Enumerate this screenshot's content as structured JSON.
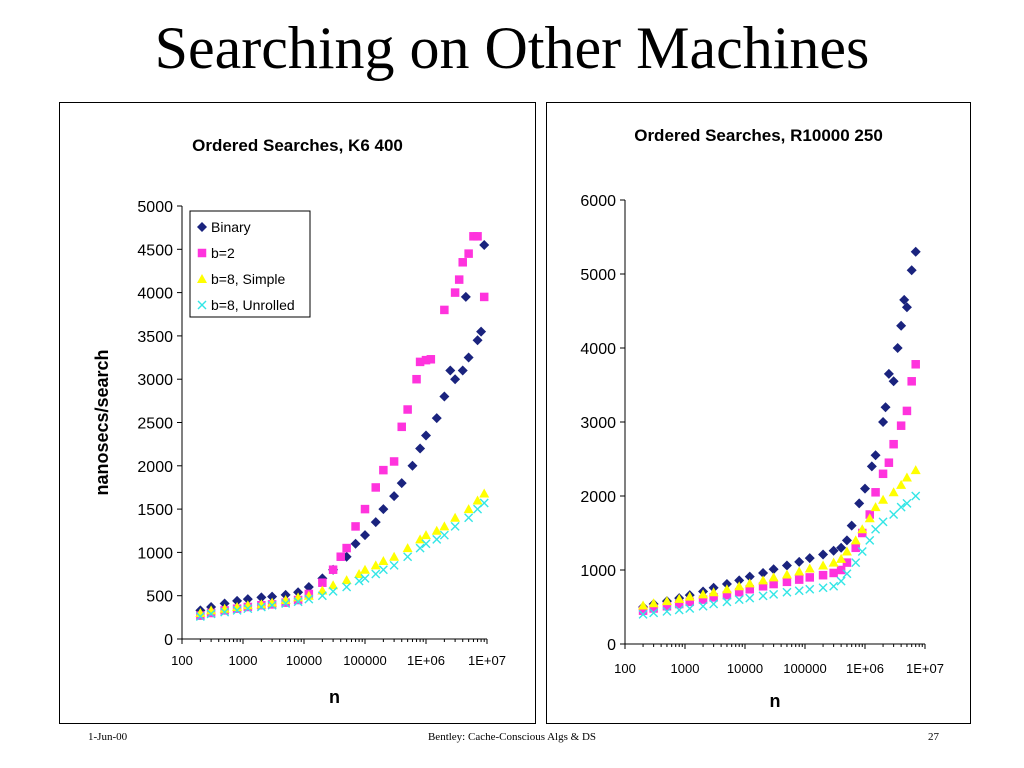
{
  "slide": {
    "title": "Searching on Other Machines",
    "footer_date": "1-Jun-00",
    "footer_center": "Bentley: Cache-Conscious Algs & DS",
    "footer_page": "27"
  },
  "colors": {
    "Binary": "#1a237e",
    "b=2": "#ff33dd",
    "b=8, Simple": "#ffff00",
    "b=8, Unrolled": "#33e6e6"
  },
  "chart_data": [
    {
      "type": "scatter",
      "title": "Ordered Searches, K6 400",
      "xlabel": "n",
      "ylabel": "nanosecs/search",
      "x_scale": "log",
      "xlim": [
        100,
        10000000
      ],
      "ylim": [
        0,
        5000
      ],
      "x_ticks": [
        "100",
        "1000",
        "10000",
        "100000",
        "1E+06",
        "1E+07"
      ],
      "y_ticks": [
        "0",
        "500",
        "1000",
        "1500",
        "2000",
        "2500",
        "3000",
        "3500",
        "4000",
        "4500",
        "5000"
      ],
      "legend": "top-left",
      "series": [
        {
          "name": "Binary",
          "marker": "diamond",
          "points": [
            [
              200,
              330
            ],
            [
              300,
              370
            ],
            [
              500,
              410
            ],
            [
              800,
              440
            ],
            [
              1200,
              460
            ],
            [
              2000,
              480
            ],
            [
              3000,
              490
            ],
            [
              5000,
              510
            ],
            [
              8000,
              540
            ],
            [
              12000,
              600
            ],
            [
              20000,
              700
            ],
            [
              30000,
              800
            ],
            [
              50000,
              950
            ],
            [
              70000,
              1100
            ],
            [
              100000,
              1200
            ],
            [
              150000,
              1350
            ],
            [
              200000,
              1500
            ],
            [
              300000,
              1650
            ],
            [
              400000,
              1800
            ],
            [
              600000,
              2000
            ],
            [
              800000,
              2200
            ],
            [
              1000000,
              2350
            ],
            [
              1500000,
              2550
            ],
            [
              2000000,
              2800
            ],
            [
              3000000,
              3000
            ],
            [
              4000000,
              3100
            ],
            [
              5000000,
              3250
            ],
            [
              7000000,
              3450
            ],
            [
              8000000,
              3550
            ],
            [
              9000000,
              4550
            ],
            [
              4500000,
              3950
            ],
            [
              2500000,
              3100
            ]
          ]
        },
        {
          "name": "b=2",
          "marker": "square",
          "points": [
            [
              200,
              270
            ],
            [
              300,
              300
            ],
            [
              500,
              330
            ],
            [
              800,
              350
            ],
            [
              1200,
              370
            ],
            [
              2000,
              390
            ],
            [
              3000,
              400
            ],
            [
              5000,
              420
            ],
            [
              8000,
              450
            ],
            [
              12000,
              520
            ],
            [
              20000,
              650
            ],
            [
              30000,
              800
            ],
            [
              40000,
              950
            ],
            [
              50000,
              1050
            ],
            [
              70000,
              1300
            ],
            [
              100000,
              1500
            ],
            [
              150000,
              1750
            ],
            [
              200000,
              1950
            ],
            [
              300000,
              2050
            ],
            [
              400000,
              2450
            ],
            [
              500000,
              2650
            ],
            [
              700000,
              3000
            ],
            [
              800000,
              3200
            ],
            [
              1000000,
              3220
            ],
            [
              1200000,
              3230
            ],
            [
              2000000,
              3800
            ],
            [
              3000000,
              4000
            ],
            [
              3500000,
              4150
            ],
            [
              4000000,
              4350
            ],
            [
              5000000,
              4450
            ],
            [
              6000000,
              4650
            ],
            [
              7000000,
              4650
            ],
            [
              9000000,
              3950
            ]
          ]
        },
        {
          "name": "b=8, Simple",
          "marker": "triangle",
          "points": [
            [
              200,
              300
            ],
            [
              300,
              330
            ],
            [
              500,
              350
            ],
            [
              800,
              370
            ],
            [
              1200,
              390
            ],
            [
              2000,
              400
            ],
            [
              3000,
              420
            ],
            [
              5000,
              450
            ],
            [
              8000,
              480
            ],
            [
              12000,
              500
            ],
            [
              20000,
              560
            ],
            [
              30000,
              620
            ],
            [
              50000,
              680
            ],
            [
              80000,
              750
            ],
            [
              100000,
              800
            ],
            [
              150000,
              850
            ],
            [
              200000,
              900
            ],
            [
              300000,
              950
            ],
            [
              500000,
              1050
            ],
            [
              800000,
              1150
            ],
            [
              1000000,
              1200
            ],
            [
              1500000,
              1250
            ],
            [
              2000000,
              1300
            ],
            [
              3000000,
              1400
            ],
            [
              5000000,
              1500
            ],
            [
              7000000,
              1600
            ],
            [
              9000000,
              1680
            ]
          ]
        },
        {
          "name": "b=8, Unrolled",
          "marker": "x",
          "points": [
            [
              200,
              260
            ],
            [
              300,
              290
            ],
            [
              500,
              310
            ],
            [
              800,
              330
            ],
            [
              1200,
              350
            ],
            [
              2000,
              370
            ],
            [
              3000,
              390
            ],
            [
              5000,
              410
            ],
            [
              8000,
              430
            ],
            [
              12000,
              460
            ],
            [
              20000,
              500
            ],
            [
              30000,
              550
            ],
            [
              50000,
              600
            ],
            [
              80000,
              670
            ],
            [
              100000,
              700
            ],
            [
              150000,
              750
            ],
            [
              200000,
              800
            ],
            [
              300000,
              850
            ],
            [
              500000,
              950
            ],
            [
              800000,
              1050
            ],
            [
              1000000,
              1100
            ],
            [
              1500000,
              1150
            ],
            [
              2000000,
              1200
            ],
            [
              3000000,
              1300
            ],
            [
              5000000,
              1400
            ],
            [
              7000000,
              1500
            ],
            [
              9000000,
              1570
            ]
          ]
        }
      ]
    },
    {
      "type": "scatter",
      "title": "Ordered Searches, R10000 250",
      "xlabel": "n",
      "ylabel": "",
      "x_scale": "log",
      "xlim": [
        100,
        10000000
      ],
      "ylim": [
        0,
        6000
      ],
      "x_ticks": [
        "100",
        "1000",
        "10000",
        "100000",
        "1E+06",
        "1E+07"
      ],
      "y_ticks": [
        "0",
        "1000",
        "2000",
        "3000",
        "4000",
        "5000",
        "6000"
      ],
      "legend": "none",
      "series": [
        {
          "name": "Binary",
          "marker": "diamond",
          "points": [
            [
              200,
              500
            ],
            [
              300,
              540
            ],
            [
              500,
              580
            ],
            [
              800,
              620
            ],
            [
              1200,
              660
            ],
            [
              2000,
              710
            ],
            [
              3000,
              760
            ],
            [
              5000,
              810
            ],
            [
              8000,
              860
            ],
            [
              12000,
              910
            ],
            [
              20000,
              960
            ],
            [
              30000,
              1010
            ],
            [
              50000,
              1060
            ],
            [
              80000,
              1110
            ],
            [
              120000,
              1160
            ],
            [
              200000,
              1210
            ],
            [
              300000,
              1260
            ],
            [
              400000,
              1300
            ],
            [
              500000,
              1400
            ],
            [
              600000,
              1600
            ],
            [
              800000,
              1900
            ],
            [
              1000000,
              2100
            ],
            [
              1300000,
              2400
            ],
            [
              1500000,
              2550
            ],
            [
              2000000,
              3000
            ],
            [
              2200000,
              3200
            ],
            [
              2500000,
              3650
            ],
            [
              3000000,
              3550
            ],
            [
              3500000,
              4000
            ],
            [
              4000000,
              4300
            ],
            [
              4500000,
              4650
            ],
            [
              5000000,
              4550
            ],
            [
              6000000,
              5050
            ],
            [
              7000000,
              5300
            ]
          ]
        },
        {
          "name": "b=2",
          "marker": "square",
          "points": [
            [
              200,
              450
            ],
            [
              300,
              480
            ],
            [
              500,
              510
            ],
            [
              800,
              540
            ],
            [
              1200,
              570
            ],
            [
              2000,
              600
            ],
            [
              3000,
              630
            ],
            [
              5000,
              660
            ],
            [
              8000,
              700
            ],
            [
              12000,
              740
            ],
            [
              20000,
              780
            ],
            [
              30000,
              810
            ],
            [
              50000,
              840
            ],
            [
              80000,
              870
            ],
            [
              120000,
              900
            ],
            [
              200000,
              930
            ],
            [
              300000,
              960
            ],
            [
              400000,
              1000
            ],
            [
              500000,
              1100
            ],
            [
              700000,
              1300
            ],
            [
              900000,
              1500
            ],
            [
              1200000,
              1750
            ],
            [
              1500000,
              2050
            ],
            [
              2000000,
              2300
            ],
            [
              2500000,
              2450
            ],
            [
              3000000,
              2700
            ],
            [
              4000000,
              2950
            ],
            [
              5000000,
              3150
            ],
            [
              6000000,
              3550
            ],
            [
              7000000,
              3780
            ]
          ]
        },
        {
          "name": "b=8, Simple",
          "marker": "triangle",
          "points": [
            [
              200,
              520
            ],
            [
              300,
              550
            ],
            [
              500,
              580
            ],
            [
              800,
              610
            ],
            [
              1200,
              640
            ],
            [
              2000,
              670
            ],
            [
              3000,
              700
            ],
            [
              5000,
              740
            ],
            [
              8000,
              780
            ],
            [
              12000,
              820
            ],
            [
              20000,
              860
            ],
            [
              30000,
              900
            ],
            [
              50000,
              940
            ],
            [
              80000,
              980
            ],
            [
              120000,
              1020
            ],
            [
              200000,
              1060
            ],
            [
              300000,
              1100
            ],
            [
              400000,
              1150
            ],
            [
              500000,
              1250
            ],
            [
              700000,
              1400
            ],
            [
              900000,
              1550
            ],
            [
              1200000,
              1700
            ],
            [
              1500000,
              1850
            ],
            [
              2000000,
              1950
            ],
            [
              3000000,
              2050
            ],
            [
              4000000,
              2150
            ],
            [
              5000000,
              2250
            ],
            [
              7000000,
              2350
            ]
          ]
        },
        {
          "name": "b=8, Unrolled",
          "marker": "x",
          "points": [
            [
              200,
              400
            ],
            [
              300,
              420
            ],
            [
              500,
              440
            ],
            [
              800,
              460
            ],
            [
              1200,
              480
            ],
            [
              2000,
              510
            ],
            [
              3000,
              540
            ],
            [
              5000,
              570
            ],
            [
              8000,
              600
            ],
            [
              12000,
              620
            ],
            [
              20000,
              650
            ],
            [
              30000,
              670
            ],
            [
              50000,
              700
            ],
            [
              80000,
              720
            ],
            [
              120000,
              740
            ],
            [
              200000,
              760
            ],
            [
              300000,
              780
            ],
            [
              400000,
              850
            ],
            [
              500000,
              950
            ],
            [
              700000,
              1100
            ],
            [
              900000,
              1250
            ],
            [
              1200000,
              1400
            ],
            [
              1500000,
              1550
            ],
            [
              2000000,
              1650
            ],
            [
              3000000,
              1750
            ],
            [
              4000000,
              1850
            ],
            [
              5000000,
              1900
            ],
            [
              7000000,
              2000
            ]
          ]
        }
      ]
    }
  ]
}
